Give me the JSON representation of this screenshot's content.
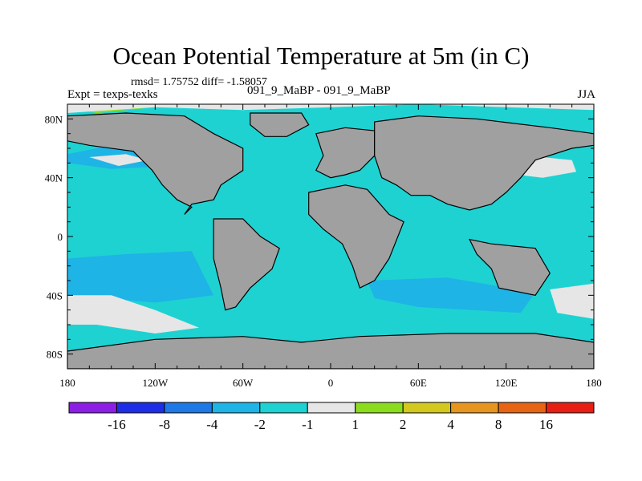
{
  "title": "Ocean Potential Temperature at 5m (in C)",
  "stats": "rmsd= 1.75752 diff= -1.58057",
  "expt": "Expt = texps-texks",
  "cases": "091_9_MaBP - 091_9_MaBP",
  "season": "JJA",
  "chart_data": {
    "type": "heatmap",
    "title": "Ocean Potential Temperature at 5m (in C)",
    "xlabel": "",
    "ylabel": "",
    "xlim": [
      -180,
      180
    ],
    "ylim": [
      -90,
      90
    ],
    "x_ticks": [
      {
        "value": -180,
        "label": "180"
      },
      {
        "value": -120,
        "label": "120W"
      },
      {
        "value": -60,
        "label": "60W"
      },
      {
        "value": 0,
        "label": "0"
      },
      {
        "value": 60,
        "label": "60E"
      },
      {
        "value": 120,
        "label": "120E"
      },
      {
        "value": 180,
        "label": "180"
      }
    ],
    "y_ticks": [
      {
        "value": 80,
        "label": "80N"
      },
      {
        "value": 40,
        "label": "40N"
      },
      {
        "value": 0,
        "label": "0"
      },
      {
        "value": -40,
        "label": "40S"
      },
      {
        "value": -80,
        "label": "80S"
      }
    ],
    "colorbar": {
      "levels": [
        "-16",
        "-8",
        "-4",
        "-2",
        "-1",
        "1",
        "2",
        "4",
        "8",
        "16"
      ],
      "colors": [
        "#8c1ee6",
        "#1e2ee6",
        "#1e78e6",
        "#1eb4e6",
        "#1ed2d2",
        "#e6e6e6",
        "#8cdc1e",
        "#d2c81e",
        "#e6961e",
        "#e66414",
        "#e61e14"
      ]
    },
    "background_level": "-1 to -2",
    "regions": [
      {
        "name": "arctic-warm",
        "level": "2 to 4",
        "color": "#8cdc1e",
        "points": [
          [
            -180,
            88
          ],
          [
            -170,
            90
          ],
          [
            -150,
            86
          ],
          [
            -120,
            88
          ],
          [
            -160,
            84
          ]
        ]
      },
      {
        "name": "arctic-neutral",
        "level": "-1 to 1",
        "color": "#e6e6e6",
        "points": [
          [
            -180,
            84
          ],
          [
            -120,
            88
          ],
          [
            -60,
            86
          ],
          [
            0,
            88
          ],
          [
            60,
            90
          ],
          [
            120,
            88
          ],
          [
            180,
            86
          ],
          [
            180,
            90
          ],
          [
            -180,
            90
          ]
        ]
      },
      {
        "name": "north-pacific-band",
        "level": "-2 to -4",
        "color": "#1eb4e6",
        "points": [
          [
            -180,
            56
          ],
          [
            -150,
            62
          ],
          [
            -120,
            62
          ],
          [
            -95,
            55
          ],
          [
            -110,
            48
          ],
          [
            -150,
            46
          ],
          [
            -180,
            50
          ]
        ]
      },
      {
        "name": "north-pacific-neutral",
        "level": "-1 to 1",
        "color": "#e6e6e6",
        "points": [
          [
            -165,
            54
          ],
          [
            -140,
            56
          ],
          [
            -125,
            52
          ],
          [
            -145,
            48
          ]
        ]
      },
      {
        "name": "west-pacific-warm",
        "level": "2 to 4",
        "color": "#8cdc1e",
        "points": [
          [
            134,
            48
          ],
          [
            146,
            50
          ],
          [
            154,
            46
          ],
          [
            142,
            43
          ]
        ]
      },
      {
        "name": "west-pacific-neutral",
        "level": "-1 to 1",
        "color": "#e6e6e6",
        "points": [
          [
            125,
            48
          ],
          [
            145,
            54
          ],
          [
            165,
            52
          ],
          [
            168,
            44
          ],
          [
            145,
            40
          ],
          [
            128,
            42
          ]
        ]
      },
      {
        "name": "tropical-pacific-neutral",
        "level": "-1 to 1",
        "color": "#e6e6e6",
        "points": [
          [
            -150,
            -25
          ],
          [
            -120,
            -18
          ],
          [
            -95,
            -22
          ],
          [
            -95,
            -35
          ],
          [
            -120,
            -38
          ],
          [
            -150,
            -32
          ]
        ]
      },
      {
        "name": "south-pacific-cool",
        "level": "-2 to -4",
        "color": "#1eb4e6",
        "points": [
          [
            -180,
            -15
          ],
          [
            -140,
            -12
          ],
          [
            -95,
            -10
          ],
          [
            -80,
            -40
          ],
          [
            -120,
            -45
          ],
          [
            -180,
            -40
          ]
        ]
      },
      {
        "name": "south-pacific-warm",
        "level": "4 to 8",
        "color": "#d2c81e",
        "points": [
          [
            -180,
            -44
          ],
          [
            -160,
            -45
          ],
          [
            -140,
            -52
          ],
          [
            -160,
            -56
          ],
          [
            -180,
            -52
          ]
        ]
      },
      {
        "name": "south-pacific-neutral",
        "level": "-1 to 1",
        "color": "#e6e6e6",
        "points": [
          [
            -180,
            -40
          ],
          [
            -150,
            -40
          ],
          [
            -120,
            -50
          ],
          [
            -90,
            -62
          ],
          [
            -120,
            -66
          ],
          [
            -160,
            -60
          ],
          [
            -180,
            -60
          ]
        ]
      },
      {
        "name": "southern-indian-cool",
        "level": "-2 to -4",
        "color": "#1eb4e6",
        "points": [
          [
            25,
            -30
          ],
          [
            80,
            -28
          ],
          [
            140,
            -38
          ],
          [
            130,
            -52
          ],
          [
            60,
            -48
          ],
          [
            30,
            -42
          ]
        ]
      },
      {
        "name": "east-pacific-warm",
        "level": "2 to 4",
        "color": "#8cdc1e",
        "points": [
          [
            162,
            -40
          ],
          [
            175,
            -38
          ],
          [
            180,
            -44
          ],
          [
            172,
            -48
          ]
        ]
      },
      {
        "name": "east-pacific-neutral",
        "level": "-1 to 1",
        "color": "#e6e6e6",
        "points": [
          [
            150,
            -36
          ],
          [
            180,
            -32
          ],
          [
            180,
            -56
          ],
          [
            155,
            -52
          ]
        ]
      }
    ],
    "land": [
      {
        "name": "north-america",
        "points": [
          [
            -180,
            82
          ],
          [
            -140,
            84
          ],
          [
            -100,
            82
          ],
          [
            -80,
            70
          ],
          [
            -60,
            60
          ],
          [
            -60,
            45
          ],
          [
            -75,
            35
          ],
          [
            -80,
            25
          ],
          [
            -95,
            22
          ],
          [
            -100,
            15
          ],
          [
            -95,
            20
          ],
          [
            -105,
            25
          ],
          [
            -115,
            35
          ],
          [
            -122,
            45
          ],
          [
            -135,
            58
          ],
          [
            -165,
            62
          ],
          [
            -180,
            65
          ]
        ]
      },
      {
        "name": "greenland",
        "points": [
          [
            -55,
            84
          ],
          [
            -20,
            84
          ],
          [
            -15,
            76
          ],
          [
            -30,
            68
          ],
          [
            -45,
            68
          ],
          [
            -55,
            76
          ]
        ]
      },
      {
        "name": "europe",
        "points": [
          [
            -10,
            70
          ],
          [
            10,
            74
          ],
          [
            30,
            72
          ],
          [
            30,
            55
          ],
          [
            20,
            45
          ],
          [
            10,
            42
          ],
          [
            0,
            40
          ],
          [
            -10,
            45
          ],
          [
            -5,
            55
          ]
        ]
      },
      {
        "name": "asia",
        "points": [
          [
            30,
            78
          ],
          [
            60,
            82
          ],
          [
            100,
            80
          ],
          [
            150,
            74
          ],
          [
            180,
            70
          ],
          [
            180,
            62
          ],
          [
            165,
            60
          ],
          [
            140,
            52
          ],
          [
            130,
            40
          ],
          [
            120,
            30
          ],
          [
            110,
            22
          ],
          [
            95,
            18
          ],
          [
            80,
            22
          ],
          [
            68,
            28
          ],
          [
            55,
            28
          ],
          [
            45,
            35
          ],
          [
            35,
            40
          ],
          [
            30,
            55
          ]
        ]
      },
      {
        "name": "south-america",
        "points": [
          [
            -80,
            12
          ],
          [
            -60,
            12
          ],
          [
            -48,
            0
          ],
          [
            -35,
            -8
          ],
          [
            -40,
            -22
          ],
          [
            -55,
            -35
          ],
          [
            -65,
            -48
          ],
          [
            -72,
            -50
          ],
          [
            -75,
            -35
          ],
          [
            -80,
            -15
          ],
          [
            -80,
            -5
          ]
        ]
      },
      {
        "name": "africa",
        "points": [
          [
            -15,
            30
          ],
          [
            10,
            35
          ],
          [
            25,
            32
          ],
          [
            40,
            15
          ],
          [
            50,
            10
          ],
          [
            40,
            -15
          ],
          [
            30,
            -30
          ],
          [
            20,
            -35
          ],
          [
            15,
            -20
          ],
          [
            8,
            -5
          ],
          [
            -5,
            5
          ],
          [
            -15,
            15
          ]
        ]
      },
      {
        "name": "australia-indonesia",
        "points": [
          [
            95,
            -2
          ],
          [
            110,
            -5
          ],
          [
            140,
            -8
          ],
          [
            150,
            -25
          ],
          [
            140,
            -40
          ],
          [
            115,
            -35
          ],
          [
            110,
            -22
          ],
          [
            100,
            -12
          ]
        ]
      },
      {
        "name": "antarctica",
        "points": [
          [
            -180,
            -78
          ],
          [
            -120,
            -70
          ],
          [
            -60,
            -68
          ],
          [
            -20,
            -72
          ],
          [
            20,
            -68
          ],
          [
            80,
            -66
          ],
          [
            140,
            -66
          ],
          [
            180,
            -72
          ],
          [
            180,
            -90
          ],
          [
            -180,
            -90
          ]
        ]
      }
    ]
  }
}
